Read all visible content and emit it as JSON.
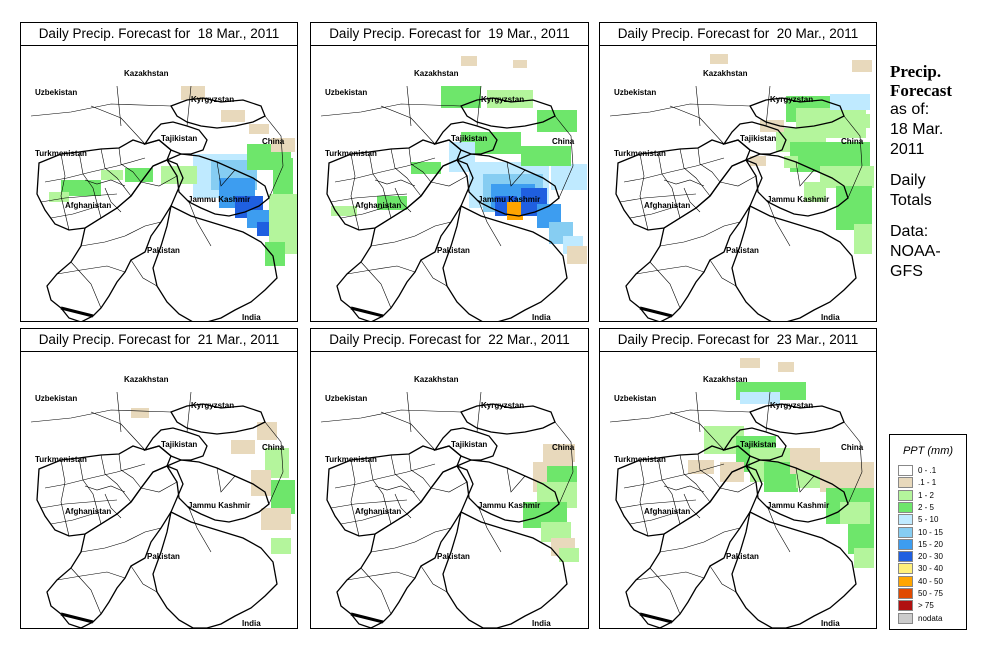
{
  "sidebar": {
    "heading_line1": "Precip.",
    "heading_line2": "Forecast",
    "asof_line1": "as of:",
    "asof_line2": "18 Mar.",
    "asof_line3": "2011",
    "totals_line1": "Daily",
    "totals_line2": "Totals",
    "data_line1": "Data:",
    "data_line2": "NOAA-",
    "data_line3": "GFS"
  },
  "map_labels": {
    "kazakhstan": "Kazakhstan",
    "uzbekistan": "Uzbekistan",
    "kyrgyzstan": "Kyrgyzstan",
    "tajikistan": "Tajikistan",
    "turkmenistan": "Turkmenistan",
    "china": "China",
    "afghanistan": "Afghanistan",
    "jammu_kashmir": "Jammu Kashmir",
    "pakistan": "Pakistan",
    "india": "India"
  },
  "panels": [
    {
      "title": "Daily Precip. Forecast for  18 Mar., 2011",
      "day": 18
    },
    {
      "title": "Daily Precip. Forecast for  19 Mar., 2011",
      "day": 19
    },
    {
      "title": "Daily Precip. Forecast for  20 Mar., 2011",
      "day": 20
    },
    {
      "title": "Daily Precip. Forecast for  21 Mar., 2011",
      "day": 21
    },
    {
      "title": "Daily Precip. Forecast for  22 Mar., 2011",
      "day": 22
    },
    {
      "title": "Daily Precip. Forecast for  23 Mar., 2011",
      "day": 23
    }
  ],
  "legend": {
    "title": "PPT (mm)",
    "items": [
      {
        "label": "0 - .1",
        "color": "#ffffff"
      },
      {
        "label": ".1 - 1",
        "color": "#e8d9bc"
      },
      {
        "label": "1 - 2",
        "color": "#b4f59c"
      },
      {
        "label": "2 - 5",
        "color": "#6ee66b"
      },
      {
        "label": "5 - 10",
        "color": "#bfeaff"
      },
      {
        "label": "10 - 15",
        "color": "#86cdf2"
      },
      {
        "label": "15 - 20",
        "color": "#3d9df0"
      },
      {
        "label": "20 - 30",
        "color": "#1f5fe0"
      },
      {
        "label": "30 - 40",
        "color": "#fff07a"
      },
      {
        "label": "40 - 50",
        "color": "#ffa500"
      },
      {
        "label": "50 - 75",
        "color": "#e04a00"
      },
      {
        "label": "> 75",
        "color": "#b01010"
      },
      {
        "label": "nodata",
        "color": "#cccccc"
      }
    ]
  }
}
